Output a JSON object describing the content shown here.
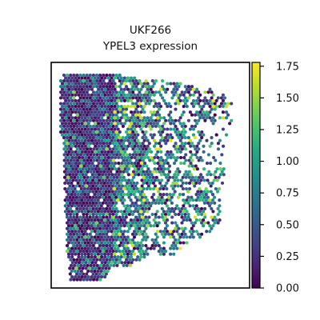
{
  "chart_data": {
    "type": "scatter",
    "title": "UKF266",
    "subtitle": "YPEL3 expression",
    "xlabel": "",
    "ylabel": "",
    "colorbar": {
      "colormap": "viridis",
      "range": [
        0,
        1.78
      ],
      "ticks": [
        0.0,
        0.25,
        0.5,
        0.75,
        1.0,
        1.25,
        1.5,
        1.75
      ],
      "tick_labels": [
        "0.00",
        "0.25",
        "0.50",
        "0.75",
        "1.00",
        "1.25",
        "1.50",
        "1.75"
      ]
    },
    "grid": false,
    "axis_ticks": "none",
    "description_of_distribution": "hexagonal spatial spots; left portion dense low values (~0.0-0.4), right portion sparser with mixed values up to ~1.75",
    "colors": {
      "low": "#440154",
      "mid": "#21918c",
      "high": "#fde725",
      "frame": "#000000"
    }
  }
}
